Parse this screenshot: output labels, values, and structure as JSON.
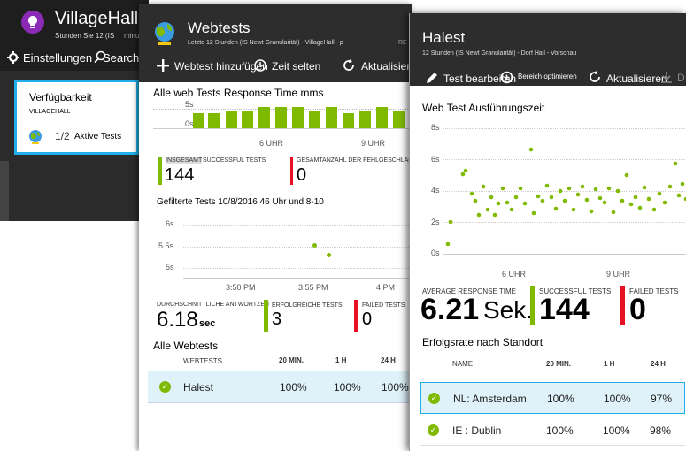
{
  "colors": {
    "accent_blue": "#1faee9",
    "success_green": "#7fba00",
    "fail_red": "#e81123",
    "header_dark": "#2d2d2d",
    "row_selected": "#dff2fa"
  },
  "blade1": {
    "title": "VillageHall",
    "subtitle": "Stunden Sie 12 (IS",
    "subtitle_trunc": "minu",
    "settings_label": "Einstellungen",
    "search_label": "Search",
    "tile": {
      "title": "Verfügbarkeit",
      "subtitle": "VILLAGEHALL",
      "count": "1/2",
      "count_label": "Aktive Tests"
    }
  },
  "blade2": {
    "title": "Webtests",
    "subtitle": "Letzte 12 Stunden (IS Newt Granularität) - VillageHall - p",
    "subtitle_trunc": "RE",
    "toolbar": {
      "add": "Webtest hinzufügen",
      "time": "Zeit selten",
      "refresh": "Aktualisieren"
    },
    "response_chart": {
      "title": "Alle web Tests Response Time mms",
      "ytick": "5s",
      "ytick0": "0s",
      "xticks": [
        "6 UHR",
        "9 UHR"
      ]
    },
    "kpis": {
      "total_label_a": "INSGESAMT",
      "total_label_b": "SUCCESSFUL TESTS",
      "total_value": "144",
      "failed_label": "GESAMTANZAHL DER FEHLGESCHLAGENEN TESTS",
      "failed_value": "0"
    },
    "filtered_chart": {
      "title": "Gefilterte Tests 10/8/2016 46 Uhr und 8-10",
      "yticks": [
        "6s",
        "5.5s",
        "5s"
      ],
      "xticks": [
        "3:50 PM",
        "3:55 PM",
        "4 PM"
      ]
    },
    "kpis2": {
      "avg_label": "DURCHSCHNITTLICHE ANTWORTZEIT",
      "avg_value": "6.18",
      "avg_unit": "sec",
      "success_label": "ERFOLGREICHE TESTS",
      "success_value": "3",
      "failed_label": "FAILED TESTS",
      "failed_value": "0"
    },
    "table": {
      "title": "Alle Webtests",
      "headers": [
        "WEBTESTS",
        "20 MIN.",
        "1 H",
        "24 H"
      ],
      "rows": [
        {
          "name": "Halest",
          "m20": "100%",
          "h1": "100%",
          "h24": "100%"
        }
      ]
    }
  },
  "blade3": {
    "title": "Halest",
    "subtitle": "12 Stunden (IS Newt Granularität) - Dorf Hall - Vorschau",
    "toolbar": {
      "edit": "Test bearbeiten",
      "optimize": "Bereich optimieren",
      "refresh": "Aktualisieren"
    },
    "exec_chart": {
      "title": "Web Test Ausführungszeit",
      "yticks": [
        "8s",
        "6s",
        "4s",
        "2s",
        "0s"
      ],
      "xticks": [
        "6 UHR",
        "9 UHR"
      ]
    },
    "kpis": {
      "avg_label": "AVERAGE RESPONSE TIME",
      "avg_value": "6.21",
      "avg_unit": "Sek.",
      "success_label": "SUCCESSFUL TESTS",
      "success_value": "144",
      "failed_label": "FAILED TESTS",
      "failed_value": "0"
    },
    "table": {
      "title": "Erfolgsrate nach Standort",
      "headers": [
        "NAME",
        "20 MIN.",
        "1 H",
        "24 H"
      ],
      "rows": [
        {
          "name": "NL: Amsterdam",
          "m20": "100%",
          "h1": "100%",
          "h24": "97%"
        },
        {
          "name": "IE : Dublin",
          "m20": "100%",
          "h1": "100%",
          "h24": "98%"
        }
      ]
    }
  },
  "icons": [
    "lightbulb-icon",
    "gear-icon",
    "search-icon",
    "globe-icon",
    "plus-icon",
    "clock-icon",
    "refresh-icon",
    "pencil-icon",
    "zoom-icon",
    "download-icon",
    "check-icon"
  ]
}
